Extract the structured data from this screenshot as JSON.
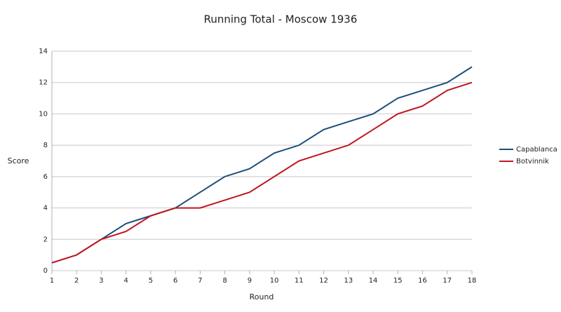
{
  "chart_data": {
    "type": "line",
    "title": "Running Total - Moscow 1936",
    "x_label": "Round",
    "y_label": "Score",
    "x": [
      1,
      2,
      3,
      4,
      5,
      6,
      7,
      8,
      9,
      10,
      11,
      12,
      13,
      14,
      15,
      16,
      17,
      18
    ],
    "series": [
      {
        "name": "Capablanca",
        "color": "#1c4e7b",
        "values": [
          0.5,
          1,
          2,
          3,
          3.5,
          4,
          5,
          6,
          6.5,
          7.5,
          8,
          9,
          9.5,
          10,
          11,
          11.5,
          12,
          13
        ]
      },
      {
        "name": "Botvinnik",
        "color": "#c0161e",
        "values": [
          0.5,
          1,
          2,
          2.5,
          3.5,
          4,
          4,
          4.5,
          5,
          6,
          7,
          7.5,
          8,
          9,
          10,
          10.5,
          11.5,
          12
        ]
      }
    ],
    "xlim": [
      1,
      18
    ],
    "xticks": [
      1,
      2,
      3,
      4,
      5,
      6,
      7,
      8,
      9,
      10,
      11,
      12,
      13,
      14,
      15,
      16,
      17,
      18
    ],
    "ylim": [
      0,
      14
    ],
    "yticks": [
      0,
      2,
      4,
      6,
      8,
      10,
      12,
      14
    ],
    "grid": true,
    "legend": "right"
  }
}
